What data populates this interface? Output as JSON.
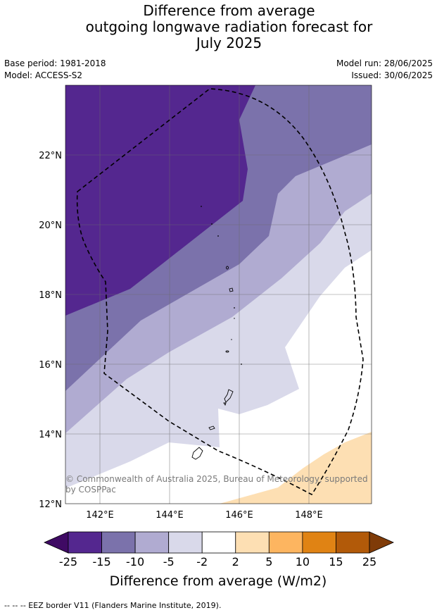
{
  "title_lines": [
    "Difference from average",
    "outgoing longwave radiation forecast for",
    "July 2025"
  ],
  "base_period": "Base period: 1981-2018",
  "model": "Model: ACCESS-S2",
  "model_run": "Model run: 28/06/2025",
  "issued": "Issued: 30/06/2025",
  "lon_ticks": [
    "142°E",
    "144°E",
    "146°E",
    "148°E"
  ],
  "lat_ticks": [
    "22°N",
    "20°N",
    "18°N",
    "16°N",
    "14°N",
    "12°N"
  ],
  "copyright_lines": [
    "© Commonwealth of Australia 2025, Bureau of Meteorology, supported",
    "by COSPPac"
  ],
  "colorbar": {
    "title": "Difference from average (W/m2)",
    "levels": [
      "-25",
      "-15",
      "-10",
      "-5",
      "-2",
      "2",
      "5",
      "10",
      "15",
      "25"
    ],
    "colors": [
      "#3f0a64",
      "#54278f",
      "#7b72ab",
      "#b0abd1",
      "#d9d9ea",
      "#ffffff",
      "#fddfb3",
      "#fdb560",
      "#e08314",
      "#b25a09",
      "#7f3b08"
    ]
  },
  "legend_note": "--  --  -- EEZ border V11 (Flanders Marine Institute, 2019).",
  "map_extent": {
    "lon_min": 141.0,
    "lon_max": 149.8,
    "lat_min": 12.0,
    "lat_max": 24.0
  }
}
